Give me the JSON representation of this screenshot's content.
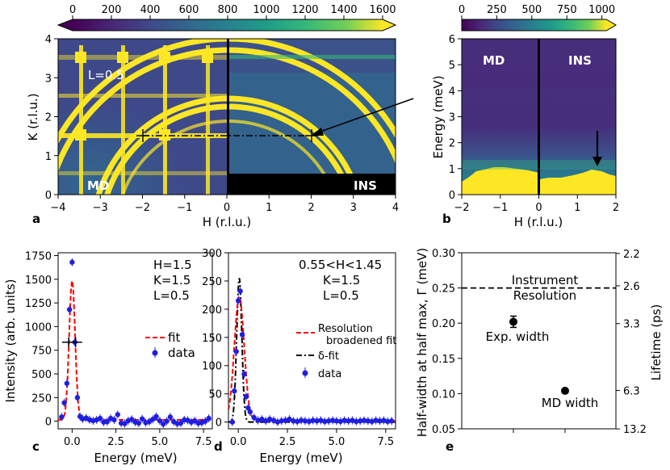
{
  "colors": {
    "accent_yellow": "#fde725",
    "viridis_dark": "#440154",
    "data_blue": "#1f1fe0",
    "fit_red": "#ff0000"
  },
  "chart_data": [
    {
      "panel": "a",
      "type": "heatmap",
      "xlabel": "H (r.l.u.)",
      "ylabel": "K (r.l.u.)",
      "xlim": [
        -4,
        4
      ],
      "ylim": [
        0,
        4
      ],
      "xticks": [
        "−4",
        "−3",
        "−2",
        "−1",
        "0",
        "1",
        "2",
        "3",
        "4"
      ],
      "yticks": [
        "0",
        "1",
        "2",
        "3",
        "4"
      ],
      "colorbar": {
        "ticks": [
          "0",
          "200",
          "400",
          "600",
          "800",
          "1000",
          "1200",
          "1400",
          "1600"
        ],
        "range": [
          0,
          1600
        ]
      },
      "labels": {
        "left": "MD",
        "right": "INS",
        "l_value": "L=0.5"
      },
      "cut": {
        "from_h": -2,
        "to_h": 2,
        "k": 1.5
      }
    },
    {
      "panel": "b",
      "type": "heatmap",
      "xlabel": "H (r.l.u.)",
      "ylabel": "Energy (meV)",
      "xlim": [
        -2,
        2
      ],
      "ylim": [
        0,
        6
      ],
      "xticks": [
        "−2",
        "−1",
        "0",
        "1",
        "2"
      ],
      "yticks": [
        "0",
        "1",
        "2",
        "3",
        "4",
        "5",
        "6"
      ],
      "colorbar": {
        "ticks": [
          "0",
          "250",
          "500",
          "750",
          "1000"
        ],
        "range": [
          0,
          1100
        ]
      },
      "labels": {
        "left": "MD",
        "right": "INS"
      },
      "arrow_h": 1.5
    },
    {
      "panel": "c",
      "type": "scatter",
      "xlabel": "Energy (meV)",
      "ylabel": "Intensity (arb. units)",
      "xlim": [
        -0.8,
        8
      ],
      "ylim": [
        -80,
        1780
      ],
      "xticks": [
        "0.0",
        "2.5",
        "5.0",
        "7.5"
      ],
      "yticks": [
        "0",
        "250",
        "500",
        "750",
        "1000",
        "1250",
        "1500",
        "1750"
      ],
      "annotation": [
        "H=1.5",
        "K=1.5",
        "L=0.5"
      ],
      "legend": [
        {
          "name": "fit",
          "style": "dashed-red"
        },
        {
          "name": "data",
          "style": "blue-dot"
        }
      ],
      "data": {
        "x": [
          -0.6,
          -0.45,
          -0.3,
          -0.15,
          0.0,
          0.15,
          0.3,
          0.45,
          0.6,
          0.8,
          1.0,
          1.2,
          1.4,
          1.6,
          1.8,
          2.0,
          2.2,
          2.4,
          2.6,
          2.8,
          3.0,
          3.2,
          3.4,
          3.6,
          3.8,
          4.0,
          4.2,
          4.4,
          4.6,
          4.8,
          5.0,
          5.2,
          5.4,
          5.6,
          5.8,
          6.0,
          6.2,
          6.4,
          6.6,
          6.8,
          7.0,
          7.2,
          7.4,
          7.6,
          7.8
        ],
        "y": [
          45,
          195,
          400,
          1180,
          1680,
          835,
          250,
          50,
          25,
          35,
          15,
          5,
          15,
          30,
          -10,
          -5,
          30,
          15,
          70,
          -20,
          -25,
          5,
          20,
          -10,
          -20,
          25,
          -15,
          -5,
          20,
          50,
          5,
          -30,
          0,
          45,
          -5,
          -25,
          -20,
          15,
          10,
          -10,
          5,
          -20,
          -15,
          0,
          30
        ]
      },
      "fit": {
        "type": "gaussian",
        "amplitude": 1470,
        "center": 0.0,
        "sigma": 0.17,
        "baseline": 15
      },
      "width_marker": {
        "y": 835,
        "x": [
          -0.2,
          0.2
        ]
      }
    },
    {
      "panel": "d",
      "type": "scatter",
      "xlabel": "Energy (meV)",
      "ylabel": "",
      "xlim": [
        -0.5,
        8
      ],
      "ylim": [
        -12,
        300
      ],
      "xticks": [
        "0.0",
        "2.5",
        "5.0",
        "7.5"
      ],
      "yticks": [
        "0",
        "50",
        "100",
        "150",
        "200",
        "250",
        "300"
      ],
      "annotation": [
        "0.55<H<1.45",
        "K=1.5",
        "L=0.5"
      ],
      "legend": [
        {
          "name": "Resolution broadened fit",
          "style": "dashed-red"
        },
        {
          "name": "δ-fit",
          "style": "dashdot-black"
        },
        {
          "name": "data",
          "style": "blue-dot"
        }
      ],
      "data": {
        "x": [
          -0.3,
          -0.2,
          -0.1,
          0.0,
          0.1,
          0.2,
          0.3,
          0.4,
          0.5,
          0.6,
          0.8,
          1.0,
          1.2,
          1.4,
          1.6,
          1.8,
          2.0,
          2.2,
          2.4,
          2.6,
          2.8,
          3.0,
          3.2,
          3.4,
          3.6,
          3.8,
          4.0,
          4.2,
          4.4,
          4.6,
          4.8,
          5.0,
          5.2,
          5.4,
          5.6,
          5.8,
          6.0,
          6.2,
          6.4,
          6.6,
          6.8,
          7.0,
          7.2,
          7.4,
          7.6,
          7.8
        ],
        "y": [
          0,
          55,
          125,
          215,
          232,
          155,
          85,
          45,
          25,
          18,
          8,
          3,
          5,
          2,
          5,
          3,
          0,
          2,
          3,
          5,
          2,
          1,
          3,
          2,
          1,
          3,
          2,
          3,
          1,
          2,
          3,
          2,
          1,
          3,
          2,
          3,
          1,
          2,
          3,
          2,
          1,
          3,
          2,
          3,
          1,
          2
        ]
      },
      "fit_resolution": {
        "type": "gaussian",
        "amplitude": 220,
        "center": 0.05,
        "sigma": 0.25,
        "baseline": 2
      },
      "fit_delta": {
        "type": "gaussian",
        "amplitude": 255,
        "center": 0.05,
        "sigma": 0.13,
        "baseline": 0
      }
    },
    {
      "panel": "e",
      "type": "scatter",
      "ylabel": "Half-width at half max, Γ (meV)",
      "ylabel_right": "Lifetime (ps)",
      "ylim": [
        0.05,
        0.3
      ],
      "yticks": [
        "0.05",
        "0.10",
        "0.15",
        "0.20",
        "0.25",
        "0.30"
      ],
      "yticks_right": [
        "13.2",
        "6.3",
        "3.3",
        "2.6",
        "2.2"
      ],
      "points": [
        {
          "label": "Exp. width",
          "y": 0.202,
          "err": 0.008
        },
        {
          "label": "MD width",
          "y": 0.104,
          "err": 0.002
        }
      ],
      "resolution": {
        "y": 0.25,
        "label_line1": "Instrument",
        "label_line2": "Resolution"
      }
    }
  ]
}
